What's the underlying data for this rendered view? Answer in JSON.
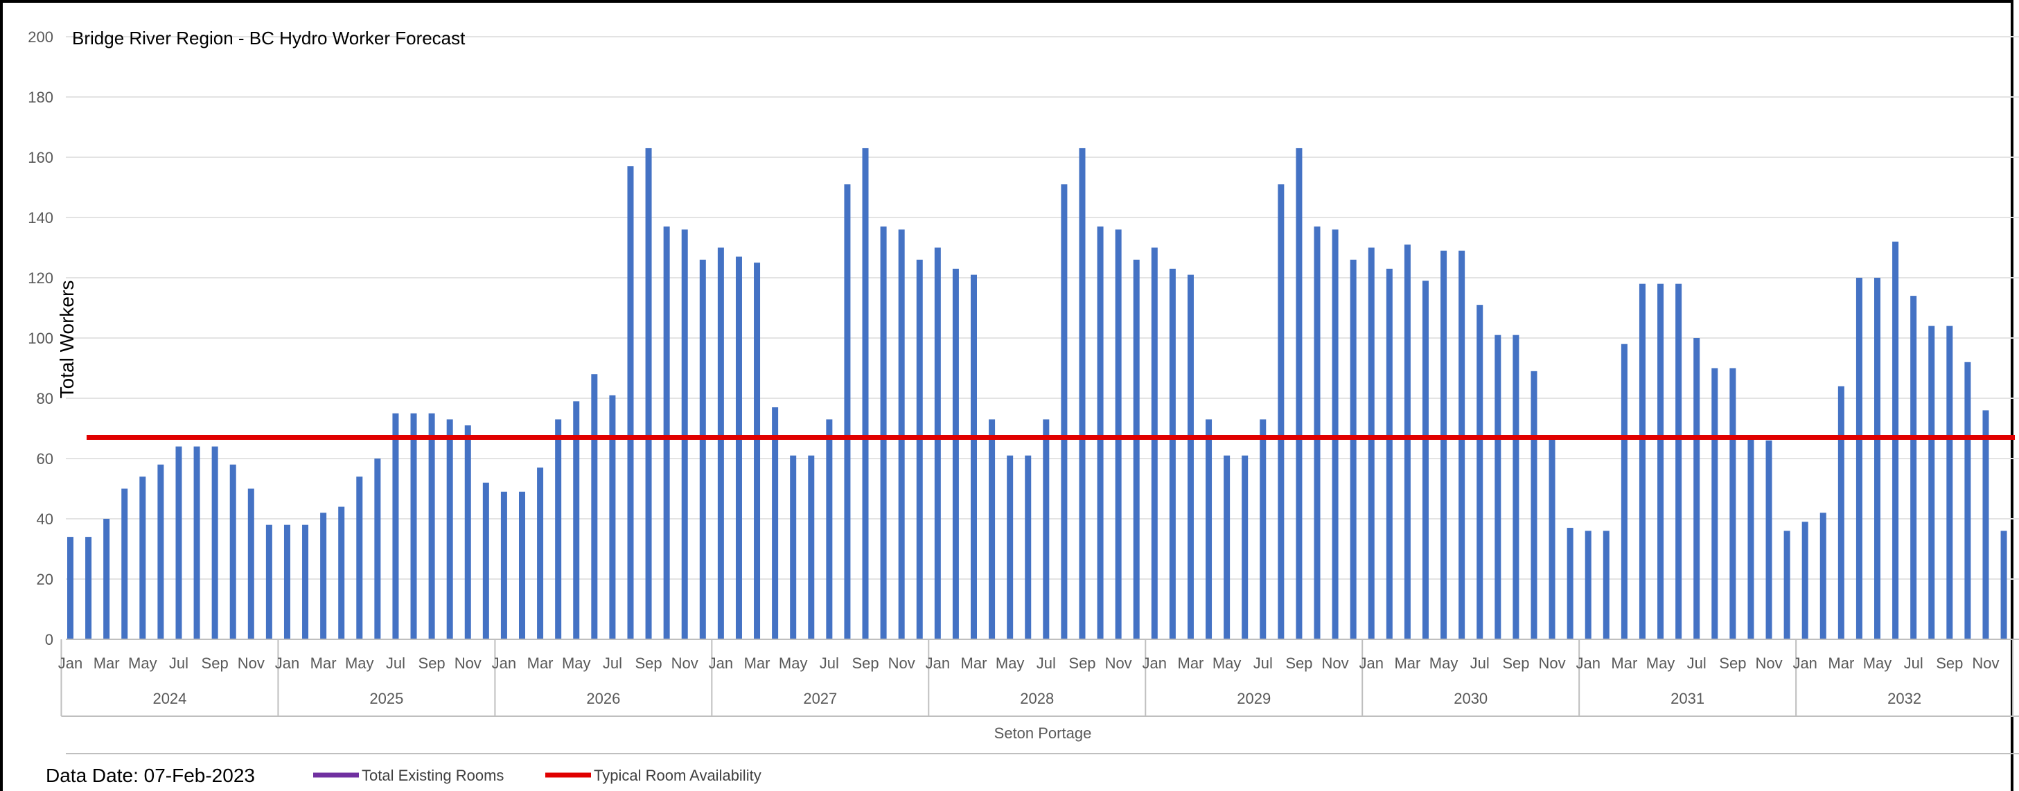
{
  "chart_data": {
    "type": "bar",
    "title": "Bridge River Region - BC Hydro Worker Forecast",
    "ylabel": "Total Workers",
    "xlabel": "Seton Portage",
    "ylim": [
      0,
      200
    ],
    "y_ticks": [
      0,
      20,
      40,
      60,
      80,
      100,
      120,
      140,
      160,
      180,
      200
    ],
    "grid": true,
    "bar_color": "#4472C4",
    "month_labels": [
      "Jan",
      "Mar",
      "May",
      "Jul",
      "Sep",
      "Nov"
    ],
    "years": [
      "2024",
      "2025",
      "2026",
      "2027",
      "2028",
      "2029",
      "2030",
      "2031",
      "2032"
    ],
    "series": [
      {
        "name": "Total Workers",
        "values": [
          34,
          34,
          40,
          50,
          54,
          58,
          64,
          64,
          64,
          58,
          50,
          38,
          38,
          38,
          42,
          44,
          54,
          60,
          75,
          75,
          75,
          73,
          71,
          52,
          49,
          49,
          57,
          73,
          79,
          88,
          81,
          157,
          163,
          137,
          136,
          126,
          130,
          127,
          125,
          77,
          61,
          61,
          73,
          151,
          163,
          137,
          136,
          126,
          130,
          123,
          121,
          73,
          61,
          61,
          73,
          151,
          163,
          137,
          136,
          126,
          130,
          123,
          121,
          73,
          61,
          61,
          73,
          151,
          163,
          137,
          136,
          126,
          130,
          123,
          131,
          119,
          129,
          129,
          111,
          101,
          101,
          89,
          67,
          37,
          36,
          36,
          98,
          118,
          118,
          118,
          100,
          90,
          90,
          67,
          66,
          36,
          39,
          42,
          84,
          120,
          120,
          132,
          114,
          104,
          104,
          92,
          76,
          36
        ]
      }
    ],
    "reference_lines": [
      {
        "name": "Typical Room Availability",
        "value": 67,
        "color": "#E00000"
      }
    ],
    "legend": [
      {
        "name": "Total Existing Rooms",
        "color": "#7030A0"
      },
      {
        "name": "Typical Room Availability",
        "color": "#E00000"
      }
    ],
    "legend_position": "bottom"
  },
  "footer": {
    "data_date": "Data Date: 07-Feb-2023"
  }
}
